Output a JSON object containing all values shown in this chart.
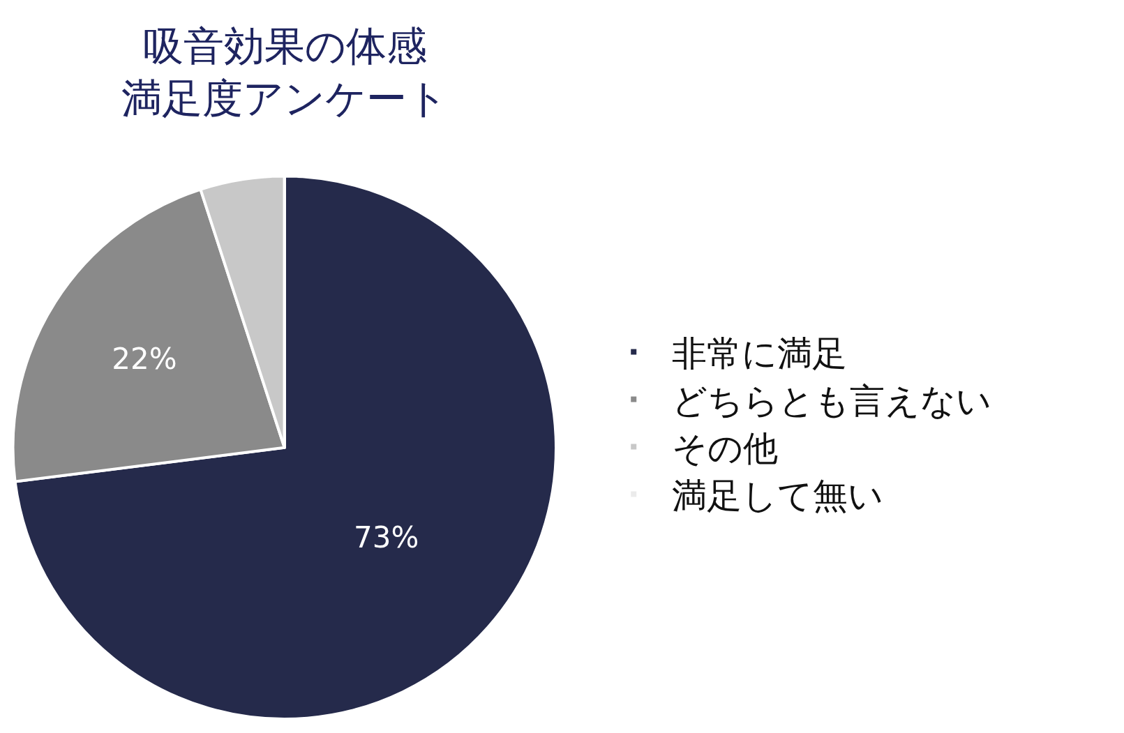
{
  "chart_data": {
    "type": "pie",
    "title": "吸音効果の体感満足度アンケート",
    "categories": [
      "非常に満足",
      "どちらとも言えない",
      "その他",
      "満足して無い"
    ],
    "values": [
      73,
      22,
      5,
      0
    ],
    "value_labels": [
      "73%",
      "22%",
      null,
      null
    ],
    "colors": [
      "#252a4b",
      "#8a8a8a",
      "#c8c8c8",
      "#ebebeb"
    ],
    "legend": "right"
  }
}
